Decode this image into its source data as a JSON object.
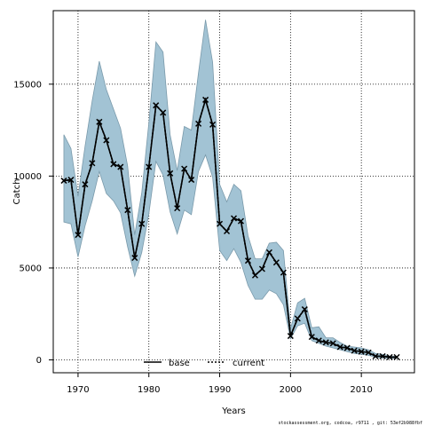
{
  "chart_data": {
    "type": "line",
    "xlabel": "Years",
    "ylabel": "Catch",
    "xlim": [
      1966.5,
      2017.5
    ],
    "ylim": [
      -700,
      19000
    ],
    "x_ticks": [
      1970,
      1980,
      1990,
      2000,
      2010
    ],
    "y_ticks": [
      0,
      5000,
      10000,
      15000
    ],
    "grid": true,
    "legend": {
      "placement": "bottom-center",
      "entries": [
        "base",
        "current"
      ]
    },
    "colors": {
      "band": "#a2c3d4",
      "band_edge": "#7a9aab",
      "base_line": "#000000",
      "current_line": "#000000"
    },
    "footer": "stockassessment.org, codcoa, r9711 , git: 53ef2b988fbf",
    "series": [
      {
        "name": "current",
        "x": [
          1968,
          1969,
          1970,
          1971,
          1972,
          1973,
          1974,
          1975,
          1976,
          1977,
          1978,
          1979,
          1980,
          1981,
          1982,
          1983,
          1984,
          1985,
          1986,
          1987,
          1988,
          1989,
          1990,
          1991,
          1992,
          1993,
          1994,
          1995,
          1996,
          1997,
          1998,
          1999,
          2000,
          2001,
          2002,
          2003,
          2004,
          2005,
          2006,
          2007,
          2008,
          2009,
          2010,
          2011,
          2012,
          2013,
          2014,
          2015
        ],
        "y": [
          9750,
          9800,
          6800,
          9550,
          10700,
          12950,
          11950,
          10650,
          10500,
          8150,
          5550,
          7400,
          10500,
          13850,
          13450,
          10150,
          8250,
          10400,
          9800,
          12850,
          14150,
          12800,
          7400,
          7000,
          7700,
          7550,
          5400,
          4600,
          4950,
          5850,
          5300,
          4750,
          1300,
          2250,
          2750,
          1250,
          1050,
          950,
          900,
          700,
          650,
          500,
          450,
          400,
          200,
          200,
          150,
          150
        ],
        "lower": [
          7500,
          7400,
          5600,
          7300,
          8650,
          10250,
          9050,
          8650,
          8000,
          6150,
          4550,
          5850,
          7950,
          10800,
          10050,
          8050,
          6850,
          8150,
          7900,
          10250,
          11150,
          9950,
          5950,
          5400,
          6050,
          5300,
          4050,
          3300,
          3300,
          3800,
          3600,
          3000,
          1150,
          1850,
          2000,
          1050,
          900,
          750,
          650,
          550,
          450,
          350,
          300,
          250,
          150,
          100,
          100,
          80
        ],
        "upper": [
          12250,
          11500,
          8900,
          11650,
          14100,
          16250,
          14700,
          13650,
          12600,
          10550,
          6800,
          9100,
          12900,
          17300,
          16750,
          12250,
          10300,
          12700,
          12500,
          15600,
          18500,
          16200,
          9550,
          8600,
          9550,
          9200,
          6750,
          5500,
          5500,
          6350,
          6400,
          5950,
          1700,
          3100,
          3350,
          1750,
          1800,
          1200,
          1200,
          950,
          750,
          700,
          650,
          550,
          350,
          300,
          200,
          200
        ]
      }
    ]
  }
}
